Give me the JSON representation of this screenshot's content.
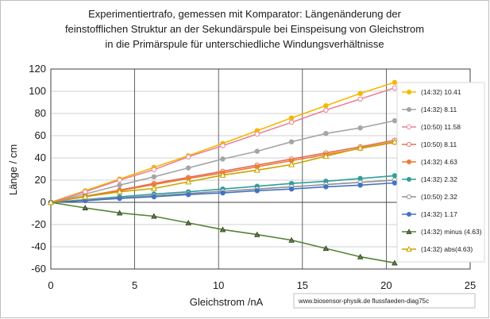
{
  "chart_data": {
    "type": "line",
    "title": [
      "Experimentiertrafo,  gemessen mit Komparator:  Längenänderung der",
      "feinstofflichen Struktur  an der Sekundärspule bei Einspeisung von Gleichstrom",
      "in die Primärspule für unterschiedliche Windungsverhältnisse"
    ],
    "xlabel": "Gleichstrom /nA",
    "ylabel": "Länge / cm",
    "xlim": [
      0,
      25
    ],
    "ylim": [
      -60,
      120
    ],
    "xticks": [
      "0",
      "5",
      "10",
      "15",
      "20",
      "25"
    ],
    "yticks": [
      "-60",
      "-40",
      "-20",
      "0",
      "20",
      "40",
      "60",
      "80",
      "100",
      "120"
    ],
    "grid": "vertical and horizontal major gridlines",
    "legend_position": "right",
    "credit": "www.biosensor-physik.de  flussfaeden-diag75c",
    "series": [
      {
        "name": "(14:32) 10.41",
        "color": "#f5b800",
        "marker": "circle-filled",
        "x": [
          0,
          2.05,
          4.1,
          6.15,
          8.2,
          10.25,
          12.3,
          14.35,
          16.4,
          18.45,
          20.5
        ],
        "y": [
          0,
          10.5,
          21,
          31.5,
          42,
          53,
          64.5,
          76,
          87,
          98,
          108
        ]
      },
      {
        "name": "(14:32) 8.11",
        "color": "#a5a5a5",
        "marker": "circle-filled",
        "x": [
          0,
          2.05,
          4.1,
          6.15,
          8.2,
          10.25,
          12.3,
          14.35,
          16.4,
          18.45,
          20.5
        ],
        "y": [
          0,
          7.5,
          15.5,
          23,
          31,
          39,
          46,
          54.5,
          62,
          67,
          73.5
        ]
      },
      {
        "name": "(10:50) 11.58",
        "color": "#e8849a",
        "marker": "circle-open",
        "x": [
          0,
          2.05,
          4.1,
          6.15,
          8.2,
          10.25,
          12.3,
          14.35,
          16.4,
          18.45,
          20.5
        ],
        "y": [
          0,
          9.5,
          20,
          29.5,
          41,
          51,
          61.5,
          72,
          83,
          93,
          103
        ]
      },
      {
        "name": "(10:50) 8.11",
        "color": "#e36d5a",
        "marker": "circle-open",
        "x": [
          0,
          2.05,
          4.1,
          6.15,
          8.2,
          10.25,
          12.3,
          14.35,
          16.4,
          18.45,
          20.5
        ],
        "y": [
          0,
          5.5,
          11,
          17,
          22.5,
          28,
          33.5,
          39,
          44.5,
          50,
          56
        ]
      },
      {
        "name": "(14:32) 4.63",
        "color": "#ed7d31",
        "marker": "circle-filled",
        "x": [
          0,
          2.05,
          4.1,
          6.15,
          8.2,
          10.25,
          12.3,
          14.35,
          16.4,
          18.45,
          20.5
        ],
        "y": [
          0,
          5.5,
          10.5,
          16,
          21.5,
          26.5,
          32,
          37.5,
          43,
          48.5,
          54
        ]
      },
      {
        "name": "(14:32) 2.32",
        "color": "#2e9e9e",
        "marker": "circle-filled",
        "x": [
          0,
          2.05,
          4.1,
          6.15,
          8.2,
          10.25,
          12.3,
          14.35,
          16.4,
          18.45,
          20.5
        ],
        "y": [
          0,
          2.5,
          5,
          7.5,
          9.5,
          12,
          14.5,
          17,
          19,
          21.5,
          24
        ]
      },
      {
        "name": "(10:50) 2.32",
        "color": "#909090",
        "marker": "circle-open",
        "x": [
          0,
          2.05,
          4.1,
          6.15,
          8.2,
          10.25,
          12.3,
          14.35,
          16.4,
          18.45,
          20.5
        ],
        "y": [
          0,
          2,
          4,
          6,
          8,
          10,
          12,
          14,
          16,
          18,
          20
        ]
      },
      {
        "name": "(14:32) 1.17",
        "color": "#4472c4",
        "marker": "circle-filled",
        "x": [
          0,
          2.05,
          4.1,
          6.15,
          8.2,
          10.25,
          12.3,
          14.35,
          16.4,
          18.45,
          20.5
        ],
        "y": [
          0,
          1.5,
          3.5,
          5,
          7,
          8.5,
          10.5,
          12,
          14,
          15.5,
          17.5
        ]
      },
      {
        "name": "(14:32) minus (4.63)",
        "color": "#548235",
        "marker": "triangle-filled",
        "x": [
          0,
          2.05,
          4.1,
          6.15,
          8.2,
          10.25,
          12.3,
          14.35,
          16.4,
          18.45,
          20.5
        ],
        "y": [
          0,
          -5,
          -9.5,
          -12.5,
          -18.5,
          -24.5,
          -29,
          -34,
          -41.5,
          -49,
          -54.5
        ]
      },
      {
        "name": "(14:32) abs(4.63)",
        "color": "#c9a400",
        "marker": "triangle-open",
        "x": [
          0,
          2.05,
          4.1,
          6.15,
          8.2,
          10.25,
          12.3,
          14.35,
          16.4,
          18.45,
          20.5
        ],
        "y": [
          0,
          5,
          9.5,
          12.5,
          18.5,
          24.5,
          29,
          34,
          41.5,
          49,
          54.5
        ]
      }
    ]
  }
}
